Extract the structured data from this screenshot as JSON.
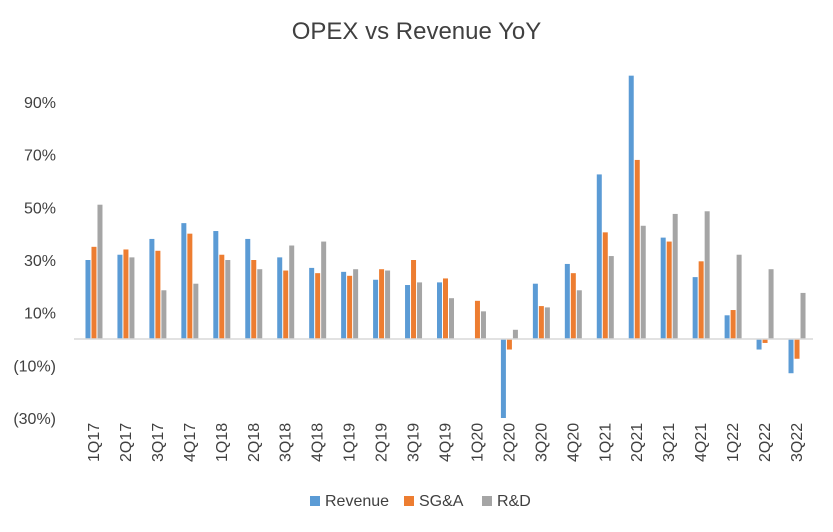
{
  "chart_data": {
    "type": "bar",
    "title": "OPEX vs Revenue YoY",
    "xlabel": "",
    "ylabel": "",
    "categories": [
      "1Q17",
      "2Q17",
      "3Q17",
      "4Q17",
      "1Q18",
      "2Q18",
      "3Q18",
      "4Q18",
      "1Q19",
      "2Q19",
      "3Q19",
      "4Q19",
      "1Q20",
      "2Q20",
      "3Q20",
      "4Q20",
      "1Q21",
      "2Q21",
      "3Q21",
      "4Q21",
      "1Q22",
      "2Q22",
      "3Q22"
    ],
    "series": [
      {
        "name": "Revenue",
        "color": "#5B9BD5",
        "values": [
          30,
          32,
          38,
          44,
          41,
          38,
          31,
          27,
          25.5,
          22.5,
          20.5,
          21.5,
          0,
          -30,
          21,
          28.5,
          62.5,
          100,
          38.5,
          23.5,
          9,
          -4,
          -13
        ]
      },
      {
        "name": "SG&A",
        "color": "#ED7D31",
        "values": [
          35,
          34,
          33.5,
          40,
          32,
          30,
          26,
          25,
          24,
          26.5,
          30,
          23,
          14.5,
          -4,
          12.5,
          25,
          40.5,
          68,
          37,
          29.5,
          11,
          -1.5,
          -7.5
        ]
      },
      {
        "name": "R&D",
        "color": "#A5A5A5",
        "values": [
          51,
          31,
          18.5,
          21,
          30,
          26.5,
          35.5,
          37,
          26.5,
          26,
          21.5,
          15.5,
          10.5,
          3.5,
          12,
          18.5,
          31.5,
          43,
          47.5,
          48.5,
          32,
          26.5,
          17.5
        ]
      }
    ],
    "yticks": [
      {
        "value": 90,
        "label": "90%"
      },
      {
        "value": 70,
        "label": "70%"
      },
      {
        "value": 50,
        "label": "50%"
      },
      {
        "value": 30,
        "label": "30%"
      },
      {
        "value": 10,
        "label": "10%"
      },
      {
        "value": -10,
        "label": "(10%)"
      },
      {
        "value": -30,
        "label": "(30%)"
      }
    ],
    "ylim": [
      -30,
      100
    ],
    "grid": false,
    "legend": "bottom"
  }
}
